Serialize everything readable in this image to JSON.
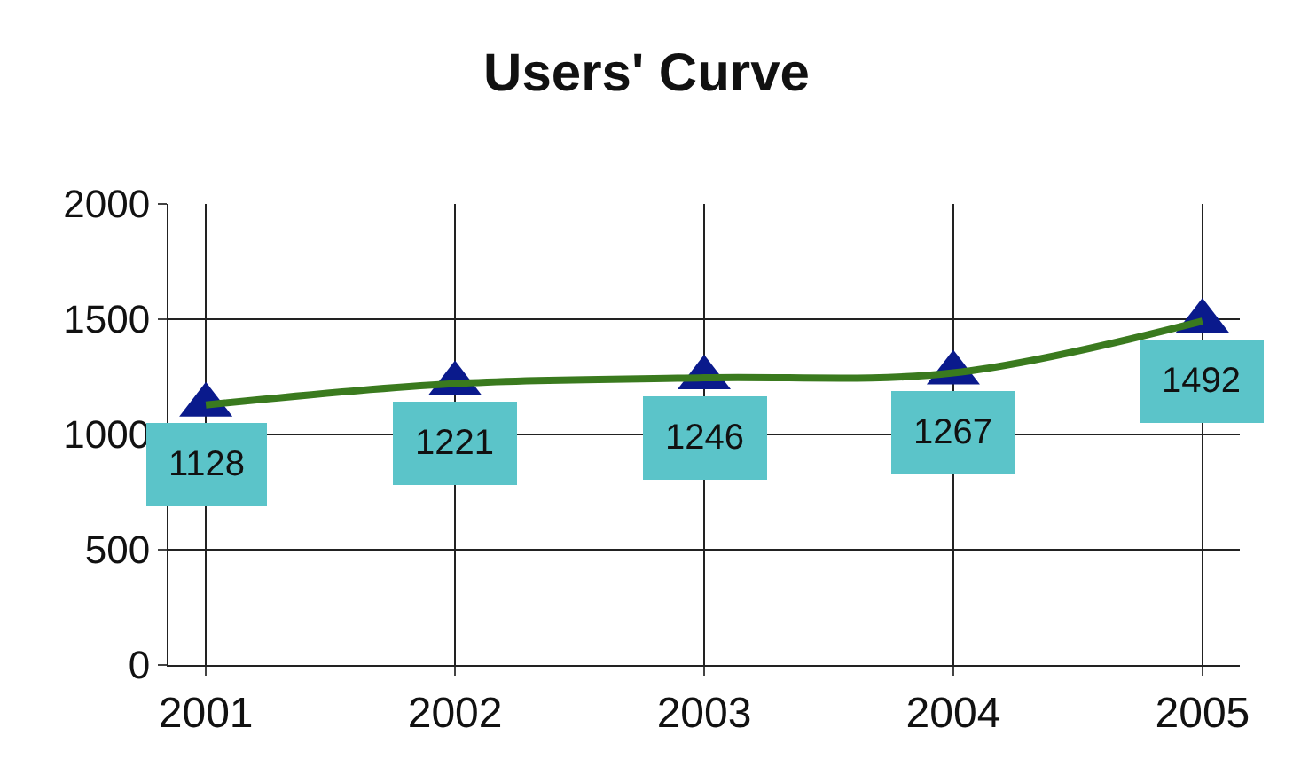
{
  "chart_data": {
    "type": "line",
    "title": "Users' Curve",
    "categories": [
      "2001",
      "2002",
      "2003",
      "2004",
      "2005"
    ],
    "series": [
      {
        "type": "scatter",
        "color": "#0a1a8c",
        "values": [
          1128,
          1221,
          1246,
          1267,
          1492
        ],
        "marker": "triangle",
        "value_labels": [
          "1128",
          "1221",
          "1246",
          "1267",
          "1492"
        ]
      },
      {
        "color": "#3a7a1e",
        "values": [
          1128,
          1221,
          1246,
          1267,
          1492
        ],
        "marker": "none"
      }
    ],
    "ylim": [
      0,
      2000
    ],
    "yticks": [
      0,
      500,
      1000,
      1500,
      2000
    ],
    "grid": true
  }
}
